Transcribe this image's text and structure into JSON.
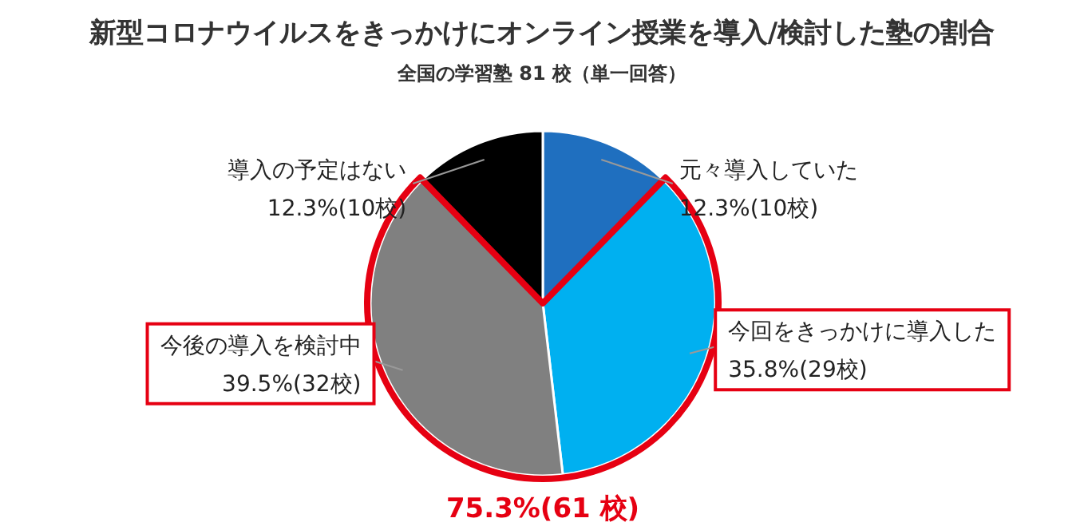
{
  "chart_data": {
    "type": "pie",
    "title": "新型コロナウイルスをきっかけにオンライン授業を導入/検討した塾の割合",
    "subtitle": "全国の学習塾 81 校（単一回答）",
    "categories": [
      "元々導入していた",
      "今回をきっかけに導入した",
      "今後の導入を検討中",
      "導入の予定はない"
    ],
    "values": [
      12.3,
      35.8,
      39.5,
      12.3
    ],
    "colors": [
      "#1f6fbf",
      "#00b0f0",
      "#808080",
      "#000000"
    ],
    "value_labels": [
      "12.3%(10校)",
      "35.8%(29校)",
      "39.5%(32校)",
      "12.3%(10校)"
    ],
    "annotations": [
      "75.3%(61 校)"
    ]
  }
}
